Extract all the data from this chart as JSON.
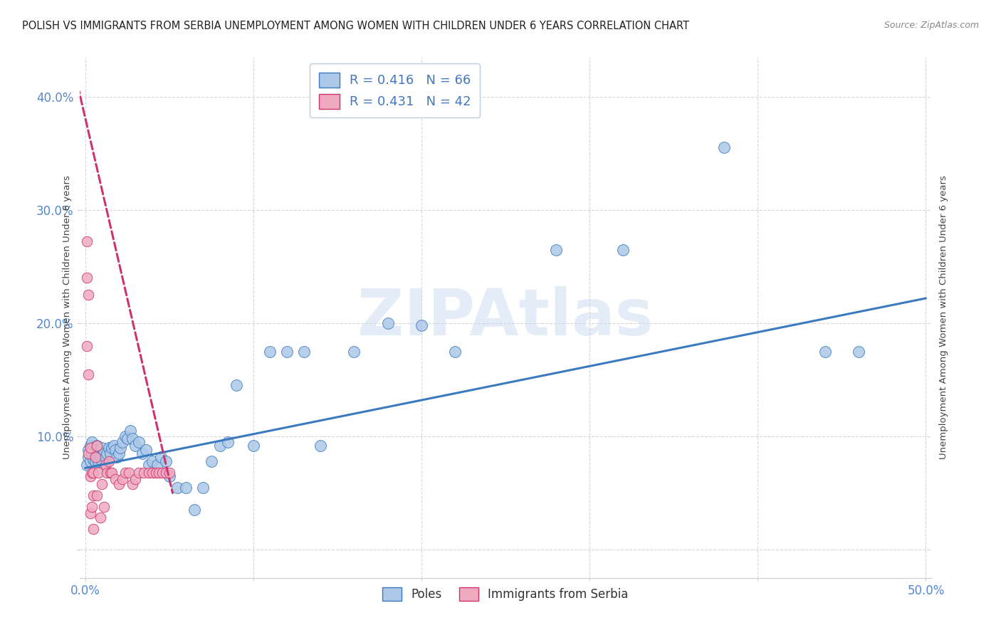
{
  "title": "POLISH VS IMMIGRANTS FROM SERBIA UNEMPLOYMENT AMONG WOMEN WITH CHILDREN UNDER 6 YEARS CORRELATION CHART",
  "source": "Source: ZipAtlas.com",
  "ylabel": "Unemployment Among Women with Children Under 6 years",
  "xlim": [
    -0.003,
    0.503
  ],
  "ylim": [
    -0.025,
    0.435
  ],
  "yticks": [
    0.0,
    0.1,
    0.2,
    0.3,
    0.4
  ],
  "xticks": [
    0.0,
    0.5
  ],
  "xtick_labels_ends": [
    "0.0%",
    "50.0%"
  ],
  "ytick_labels": [
    "",
    "10.0%",
    "20.0%",
    "30.0%",
    "40.0%"
  ],
  "poles_color": "#adc8e8",
  "serbia_color": "#f0aac0",
  "trend_poles_color": "#3a7bbf",
  "trend_serbia_color": "#cc3370",
  "R_poles": 0.416,
  "N_poles": 66,
  "R_serbia": 0.431,
  "N_serbia": 42,
  "legend_label_poles": "Poles",
  "legend_label_serbia": "Immigrants from Serbia",
  "watermark": "ZIPAtlas",
  "poles_trend_x0": 0.0,
  "poles_trend_x1": 0.5,
  "poles_trend_y0": 0.072,
  "poles_trend_y1": 0.222,
  "serbia_trend_x0": -0.006,
  "serbia_trend_x1": 0.052,
  "serbia_trend_y0": 0.42,
  "serbia_trend_y1": 0.05,
  "poles_x": [
    0.001,
    0.002,
    0.002,
    0.003,
    0.003,
    0.004,
    0.004,
    0.005,
    0.005,
    0.006,
    0.006,
    0.007,
    0.007,
    0.008,
    0.008,
    0.009,
    0.01,
    0.01,
    0.011,
    0.012,
    0.013,
    0.014,
    0.015,
    0.016,
    0.017,
    0.018,
    0.019,
    0.02,
    0.021,
    0.022,
    0.024,
    0.025,
    0.027,
    0.028,
    0.03,
    0.032,
    0.034,
    0.036,
    0.038,
    0.04,
    0.043,
    0.045,
    0.048,
    0.05,
    0.055,
    0.06,
    0.065,
    0.07,
    0.075,
    0.08,
    0.085,
    0.09,
    0.1,
    0.11,
    0.12,
    0.13,
    0.14,
    0.16,
    0.18,
    0.2,
    0.22,
    0.28,
    0.32,
    0.38,
    0.44,
    0.46
  ],
  "poles_y": [
    0.075,
    0.082,
    0.088,
    0.078,
    0.092,
    0.085,
    0.095,
    0.08,
    0.09,
    0.078,
    0.088,
    0.082,
    0.092,
    0.078,
    0.088,
    0.082,
    0.078,
    0.09,
    0.085,
    0.082,
    0.085,
    0.09,
    0.085,
    0.09,
    0.092,
    0.088,
    0.082,
    0.085,
    0.09,
    0.095,
    0.1,
    0.098,
    0.105,
    0.098,
    0.092,
    0.095,
    0.085,
    0.088,
    0.075,
    0.078,
    0.075,
    0.082,
    0.078,
    0.065,
    0.055,
    0.055,
    0.035,
    0.055,
    0.078,
    0.092,
    0.095,
    0.145,
    0.092,
    0.175,
    0.175,
    0.175,
    0.092,
    0.175,
    0.2,
    0.198,
    0.175,
    0.265,
    0.265,
    0.355,
    0.175,
    0.175
  ],
  "serbia_x": [
    0.001,
    0.001,
    0.001,
    0.002,
    0.002,
    0.002,
    0.003,
    0.003,
    0.003,
    0.004,
    0.004,
    0.005,
    0.005,
    0.005,
    0.006,
    0.007,
    0.007,
    0.008,
    0.009,
    0.01,
    0.011,
    0.012,
    0.013,
    0.014,
    0.015,
    0.016,
    0.018,
    0.02,
    0.022,
    0.024,
    0.026,
    0.028,
    0.03,
    0.032,
    0.035,
    0.038,
    0.04,
    0.042,
    0.044,
    0.046,
    0.048,
    0.05
  ],
  "serbia_y": [
    0.272,
    0.24,
    0.18,
    0.225,
    0.155,
    0.085,
    0.09,
    0.065,
    0.032,
    0.068,
    0.038,
    0.068,
    0.048,
    0.018,
    0.082,
    0.092,
    0.048,
    0.068,
    0.028,
    0.058,
    0.038,
    0.075,
    0.068,
    0.078,
    0.068,
    0.068,
    0.062,
    0.058,
    0.062,
    0.068,
    0.068,
    0.058,
    0.062,
    0.068,
    0.068,
    0.068,
    0.068,
    0.068,
    0.068,
    0.068,
    0.068,
    0.068
  ]
}
